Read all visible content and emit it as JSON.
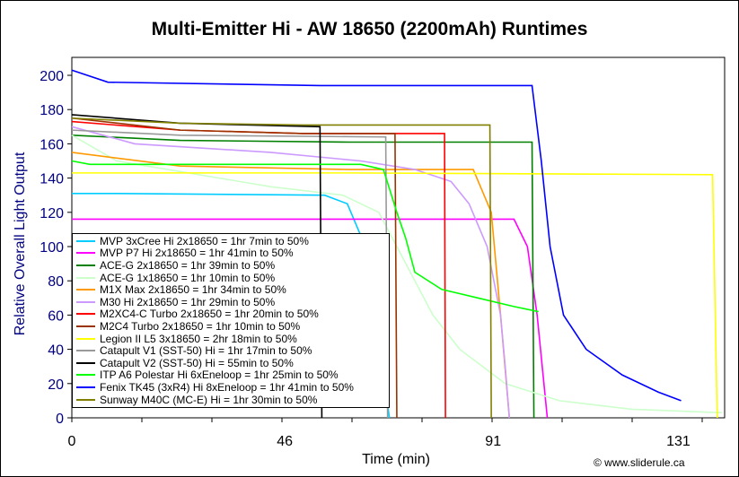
{
  "chart_data": {
    "type": "line",
    "title": "Multi-Emitter Hi - AW 18650 (2200mAh) Runtimes",
    "xlabel": "Time (min)",
    "ylabel": "Relative Overall Light Output",
    "xlim": [
      0,
      141
    ],
    "ylim": [
      0,
      200
    ],
    "x_ticks": [
      {
        "label": "0",
        "value": 0
      },
      {
        "label": "46",
        "value": 46
      },
      {
        "label": "91",
        "value": 91
      },
      {
        "label": "131",
        "value": 131
      }
    ],
    "y_ticks": [
      0,
      20,
      40,
      60,
      80,
      100,
      120,
      140,
      160,
      180,
      200
    ],
    "legend_position": "bottom-left",
    "credit": "© www.sliderule.ca",
    "series": [
      {
        "name": "MVP 3xCree Hi 2x18650 = 1hr 7min to 50%",
        "color": "#00ccff",
        "points": [
          [
            0,
            131
          ],
          [
            10,
            131
          ],
          [
            54.6,
            130
          ],
          [
            59.5,
            125
          ],
          [
            63.4,
            100
          ],
          [
            68.6,
            0
          ]
        ]
      },
      {
        "name": "MVP P7 Hi 2x18650 = 1hr 41min to 50%",
        "color": "#ff00ff",
        "points": [
          [
            0,
            116
          ],
          [
            20,
            116
          ],
          [
            95.5,
            116
          ],
          [
            98.4,
            100
          ],
          [
            100.5,
            60
          ],
          [
            102.7,
            0
          ]
        ]
      },
      {
        "name": "ACE-G 2x18650 = 1hr 39min to 50%",
        "color": "#008000",
        "points": [
          [
            0,
            165
          ],
          [
            23.4,
            162
          ],
          [
            60,
            161
          ],
          [
            99.4,
            161
          ],
          [
            99.8,
            0
          ]
        ]
      },
      {
        "name": "ACE-G 1x18650 = 1hr 10min to 50%",
        "color": "#ccffcc",
        "points": [
          [
            0,
            165
          ],
          [
            9.7,
            150
          ],
          [
            42.9,
            135
          ],
          [
            58.5,
            130
          ],
          [
            66.3,
            120
          ],
          [
            70.2,
            100
          ],
          [
            74.1,
            80
          ],
          [
            78,
            60
          ],
          [
            83.8,
            40
          ],
          [
            93.6,
            20
          ],
          [
            105.3,
            10
          ],
          [
            120.9,
            5
          ],
          [
            140.4,
            3
          ]
        ]
      },
      {
        "name": "M1X Max 2x18650 = 1hr 34min to 50%",
        "color": "#ff9900",
        "points": [
          [
            0,
            155
          ],
          [
            23.4,
            147
          ],
          [
            60,
            145
          ],
          [
            86.7,
            145
          ],
          [
            90.6,
            120
          ],
          [
            92.6,
            60
          ],
          [
            94.5,
            0
          ]
        ]
      },
      {
        "name": "M30 Hi 2x18650 = 1hr 29min to 50%",
        "color": "#cc99ff",
        "points": [
          [
            0,
            170
          ],
          [
            13.6,
            160
          ],
          [
            42.9,
            155
          ],
          [
            62.4,
            150
          ],
          [
            74.1,
            145
          ],
          [
            81.9,
            138
          ],
          [
            85.8,
            125
          ],
          [
            89.7,
            100
          ],
          [
            92.6,
            60
          ],
          [
            93.6,
            30
          ],
          [
            94.5,
            0
          ]
        ]
      },
      {
        "name": "M2XC4-C Turbo 2x18650 = 1hr 20min to 50%",
        "color": "#ff0000",
        "points": [
          [
            0,
            173
          ],
          [
            23.4,
            168
          ],
          [
            50,
            166
          ],
          [
            80.5,
            166
          ],
          [
            80.7,
            0
          ]
        ]
      },
      {
        "name": "M2C4 Turbo 2x18650 = 1hr 10min to 50%",
        "color": "#993300",
        "points": [
          [
            0,
            175
          ],
          [
            23.4,
            168
          ],
          [
            50,
            166
          ],
          [
            69.8,
            166
          ],
          [
            70.2,
            0
          ]
        ]
      },
      {
        "name": "Legion II L5 3x18650 = 2hr 18min to 50%",
        "color": "#ffff00",
        "points": [
          [
            0,
            143
          ],
          [
            60,
            143
          ],
          [
            138.4,
            142
          ],
          [
            139.4,
            0
          ]
        ]
      },
      {
        "name": "Catapult V1 (SST-50) Hi = 1hr 17min to 50%",
        "color": "#999999",
        "points": [
          [
            0,
            168
          ],
          [
            23.4,
            165
          ],
          [
            67.8,
            164
          ],
          [
            68.2,
            0
          ]
        ]
      },
      {
        "name": "Catapult V2 (SST-50) Hi = 55min to 50%",
        "color": "#000000",
        "points": [
          [
            0,
            177
          ],
          [
            23.4,
            172
          ],
          [
            53.6,
            170
          ],
          [
            54,
            0
          ]
        ]
      },
      {
        "name": "ITP A6 Polestar Hi 6xEneloop = 1hr 25min to 50%",
        "color": "#00ff00",
        "points": [
          [
            0,
            150
          ],
          [
            3.9,
            148
          ],
          [
            62.4,
            148
          ],
          [
            67.3,
            145
          ],
          [
            70.2,
            120
          ],
          [
            72.1,
            105
          ],
          [
            73.1,
            95
          ],
          [
            74.1,
            85
          ],
          [
            79.9,
            75
          ],
          [
            87.7,
            70
          ],
          [
            95.5,
            65
          ],
          [
            100.8,
            62
          ]
        ]
      },
      {
        "name": "Fenix TK45 (3xR4) Hi 8xEneloop = 1hr 41min to 50%",
        "color": "#0000ff",
        "points": [
          [
            0,
            203
          ],
          [
            7.8,
            196
          ],
          [
            53.6,
            194
          ],
          [
            99.4,
            194
          ],
          [
            101.4,
            150
          ],
          [
            103.3,
            100
          ],
          [
            106.2,
            60
          ],
          [
            111.1,
            40
          ],
          [
            118.9,
            25
          ],
          [
            126.7,
            15
          ],
          [
            131.6,
            10
          ]
        ]
      },
      {
        "name": "Sunway M40C (MC-E) Hi = 1hr 30min to 50%",
        "color": "#808000",
        "points": [
          [
            0,
            175
          ],
          [
            23.4,
            172
          ],
          [
            50,
            171
          ],
          [
            90.3,
            171
          ],
          [
            90.6,
            0
          ]
        ]
      }
    ]
  }
}
